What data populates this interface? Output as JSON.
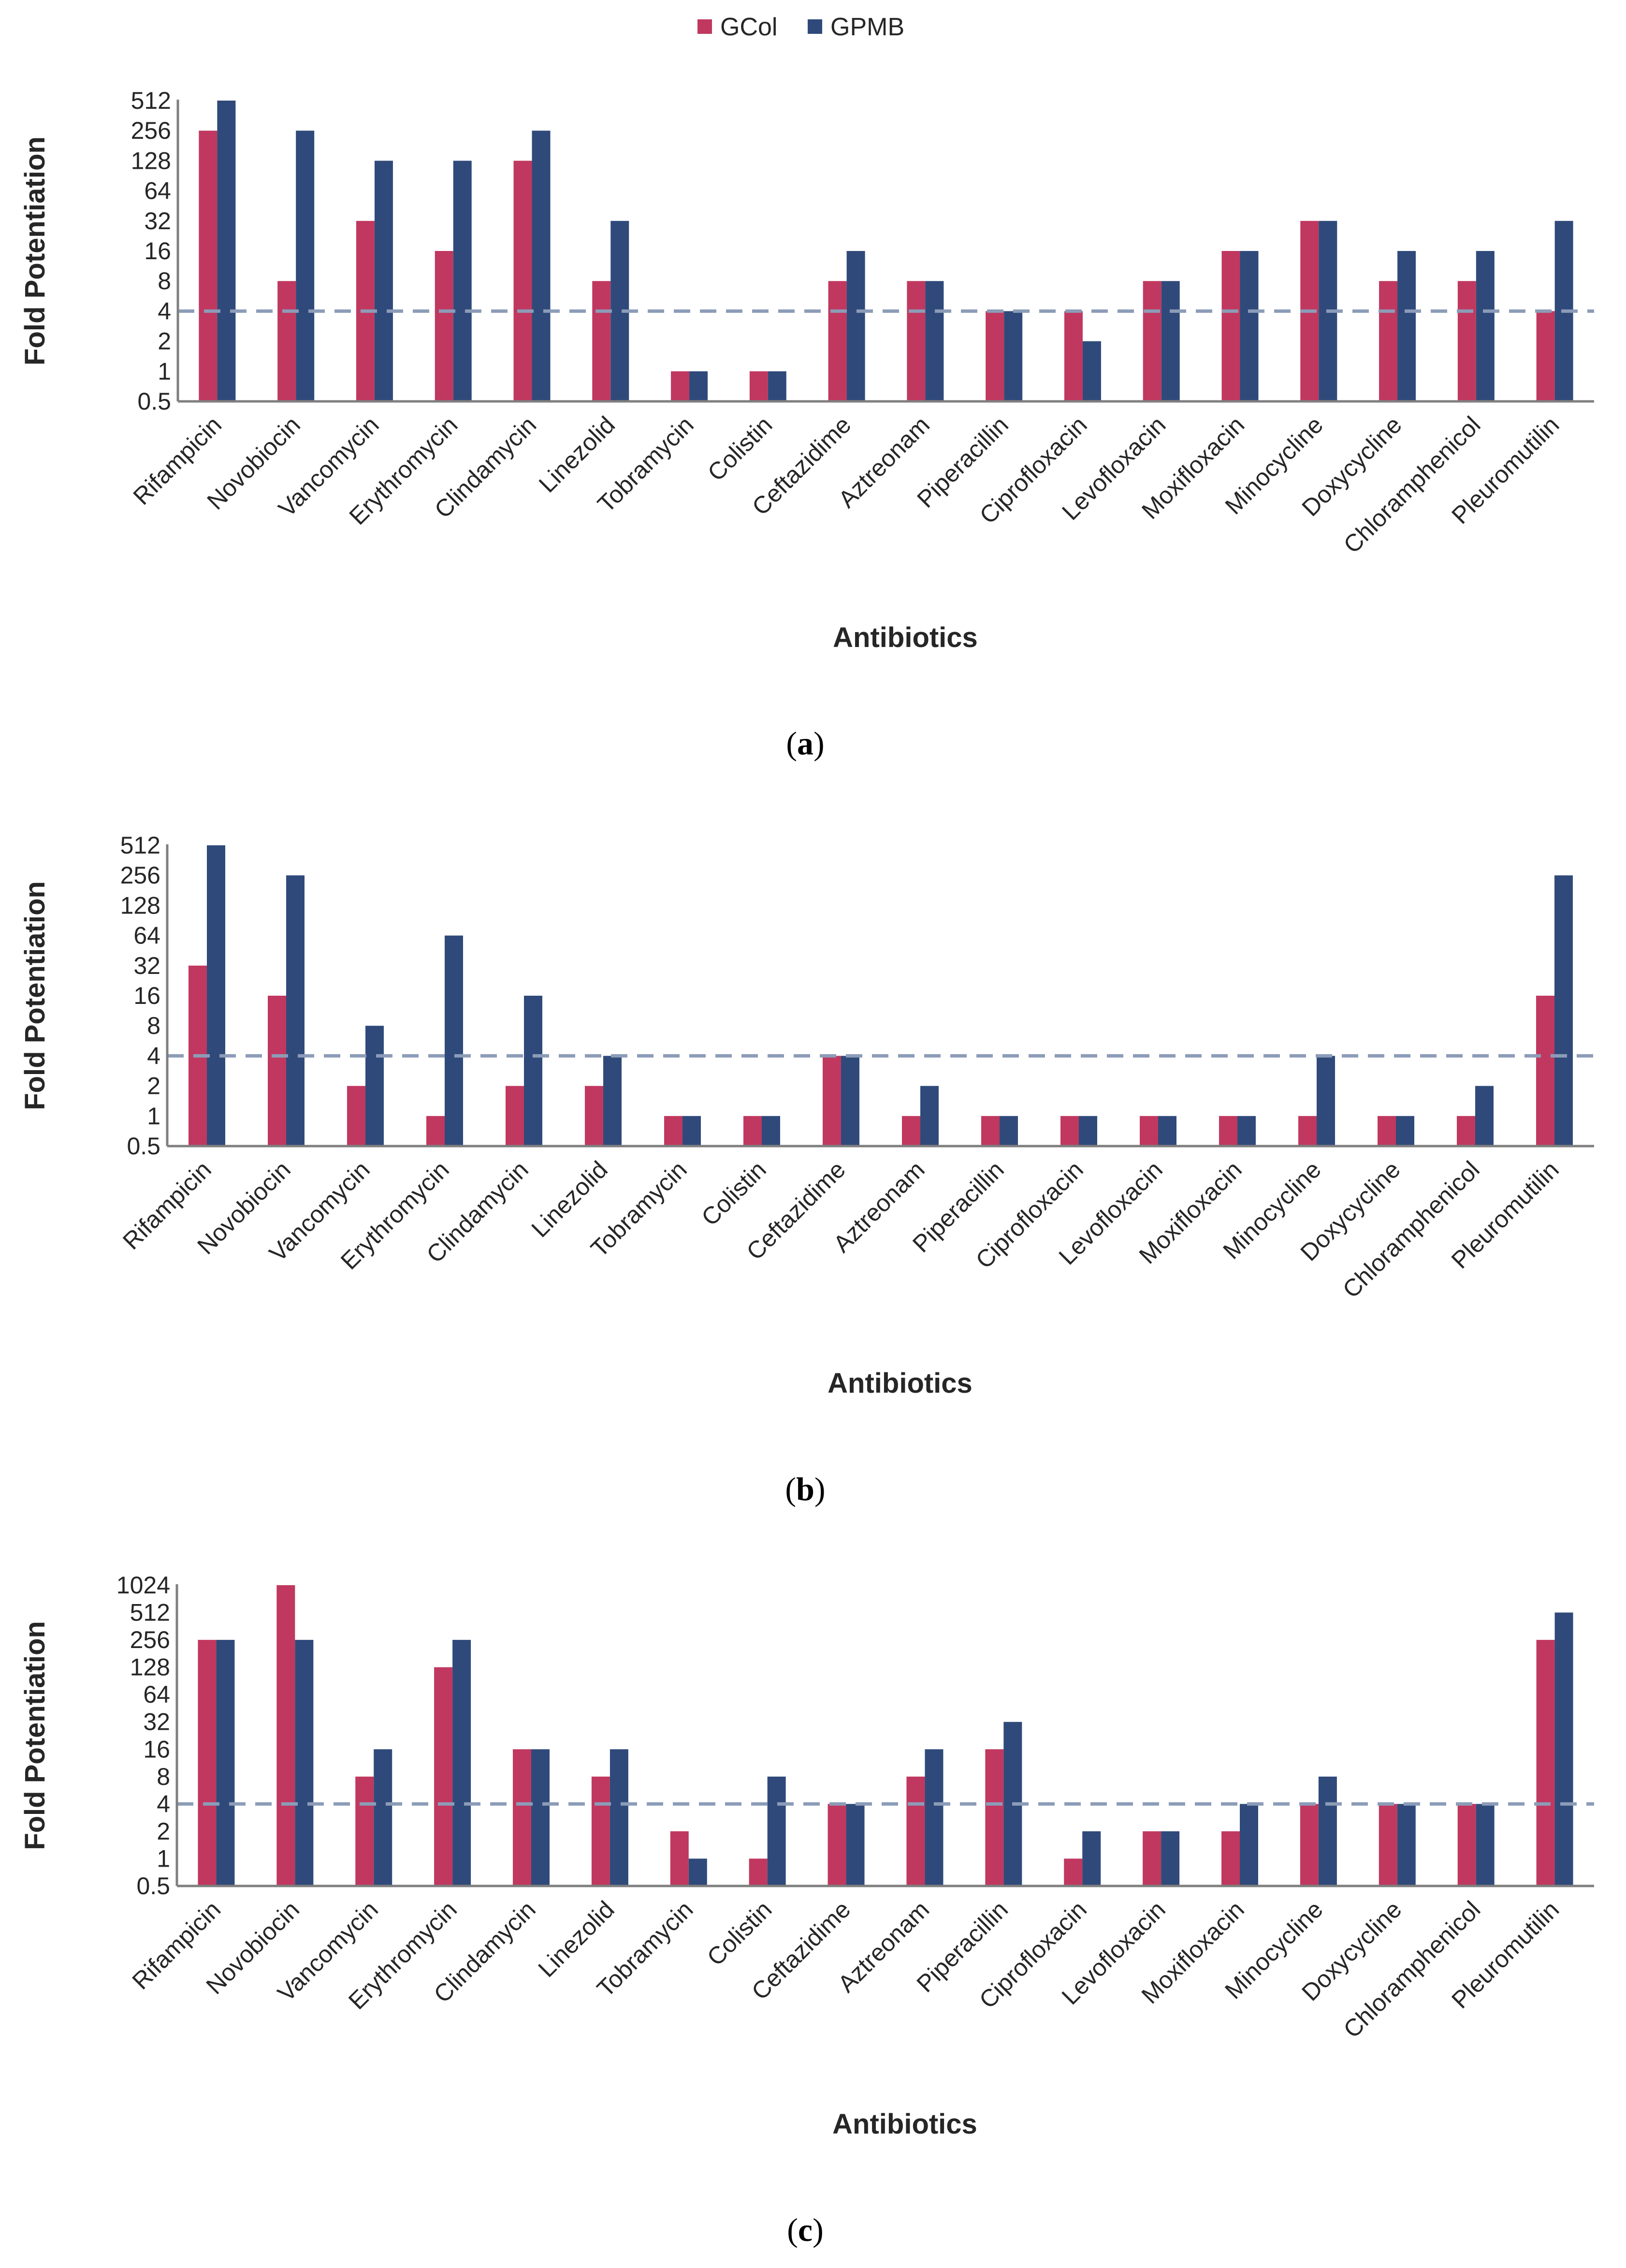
{
  "legend": [
    {
      "name": "GCol",
      "color": "#c0385f"
    },
    {
      "name": "GPMB",
      "color": "#2f4a7a"
    }
  ],
  "reference_line": {
    "value": 4,
    "color": "#8c9cb8"
  },
  "chart_data": [
    {
      "type": "bar",
      "panel": "a",
      "caption": {
        "open": "(",
        "letter": "a",
        "close": ")"
      },
      "ylabel": "Fold Potentiation",
      "xlabel": "Antibiotics",
      "yscale": "log2",
      "ylim": [
        0.5,
        512
      ],
      "yticks": [
        "0.5",
        "1",
        "2",
        "4",
        "8",
        "16",
        "32",
        "64",
        "128",
        "256",
        "512"
      ],
      "categories": [
        "Rifampicin",
        "Novobiocin",
        "Vancomycin",
        "Erythromycin",
        "Clindamycin",
        "Linezolid",
        "Tobramycin",
        "Colistin",
        "Ceftazidime",
        "Aztreonam",
        "Piperacillin",
        "Ciprofloxacin",
        "Levofloxacin",
        "Moxifloxacin",
        "Minocycline",
        "Doxycycline",
        "Chloramphenicol",
        "Pleuromutilin"
      ],
      "series": [
        {
          "name": "GCol",
          "values": [
            256,
            8,
            32,
            16,
            128,
            8,
            1,
            1,
            8,
            8,
            4,
            4,
            8,
            16,
            32,
            8,
            8,
            4
          ]
        },
        {
          "name": "GPMB",
          "values": [
            512,
            256,
            128,
            128,
            256,
            32,
            1,
            1,
            16,
            8,
            4,
            2,
            8,
            16,
            32,
            16,
            16,
            32
          ]
        }
      ]
    },
    {
      "type": "bar",
      "panel": "b",
      "caption": {
        "open": "(",
        "letter": "b",
        "close": ")"
      },
      "ylabel": "Fold Potentiation",
      "xlabel": "Antibiotics",
      "yscale": "log2",
      "ylim": [
        0.5,
        512
      ],
      "yticks": [
        "0.5",
        "1",
        "2",
        "4",
        "8",
        "16",
        "32",
        "64",
        "128",
        "256",
        "512"
      ],
      "categories": [
        "Rifampicin",
        "Novobiocin",
        "Vancomycin",
        "Erythromycin",
        "Clindamycin",
        "Linezolid",
        "Tobramycin",
        "Colistin",
        "Ceftazidime",
        "Aztreonam",
        "Piperacillin",
        "Ciprofloxacin",
        "Levofloxacin",
        "Moxifloxacin",
        "Minocycline",
        "Doxycycline",
        "Chloramphenicol",
        "Pleuromutilin"
      ],
      "series": [
        {
          "name": "GCol",
          "values": [
            32,
            16,
            2,
            1,
            2,
            2,
            1,
            1,
            4,
            1,
            1,
            1,
            1,
            1,
            1,
            1,
            1,
            16
          ]
        },
        {
          "name": "GPMB",
          "values": [
            512,
            256,
            8,
            64,
            16,
            4,
            1,
            1,
            4,
            2,
            1,
            1,
            1,
            1,
            4,
            1,
            2,
            256
          ]
        }
      ]
    },
    {
      "type": "bar",
      "panel": "c",
      "caption": {
        "open": "(",
        "letter": "c",
        "close": ")"
      },
      "ylabel": "Fold Potentiation",
      "xlabel": "Antibiotics",
      "yscale": "log2",
      "ylim": [
        0.5,
        1024
      ],
      "yticks": [
        "0.5",
        "1",
        "2",
        "4",
        "8",
        "16",
        "32",
        "64",
        "128",
        "256",
        "512",
        "1024"
      ],
      "categories": [
        "Rifampicin",
        "Novobiocin",
        "Vancomycin",
        "Erythromycin",
        "Clindamycin",
        "Linezolid",
        "Tobramycin",
        "Colistin",
        "Ceftazidime",
        "Aztreonam",
        "Piperacillin",
        "Ciprofloxacin",
        "Levofloxacin",
        "Moxifloxacin",
        "Minocycline",
        "Doxycycline",
        "Chloramphenicol",
        "Pleuromutilin"
      ],
      "series": [
        {
          "name": "GCol",
          "values": [
            256,
            1024,
            8,
            128,
            16,
            8,
            2,
            1,
            4,
            8,
            16,
            1,
            2,
            2,
            4,
            4,
            4,
            256
          ]
        },
        {
          "name": "GPMB",
          "values": [
            256,
            256,
            16,
            256,
            16,
            16,
            1,
            8,
            4,
            16,
            32,
            2,
            2,
            4,
            8,
            4,
            4,
            512
          ]
        }
      ]
    }
  ]
}
